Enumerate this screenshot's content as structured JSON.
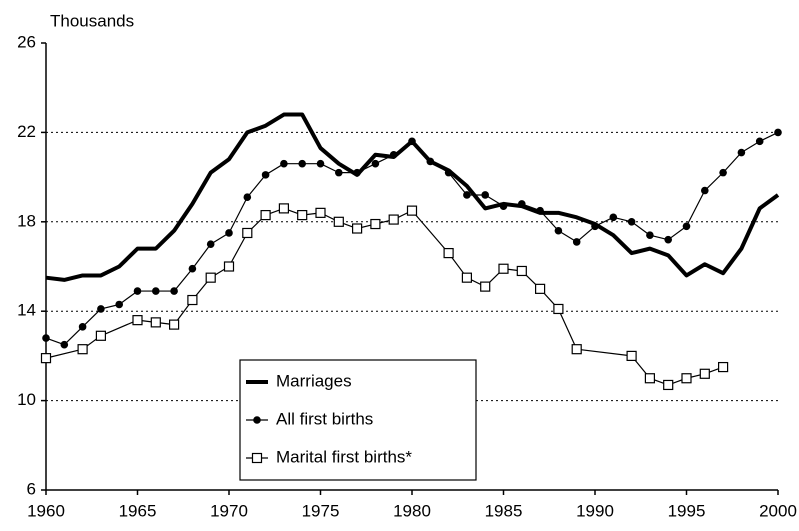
{
  "chart_data": {
    "type": "line",
    "y_axis_label": "Thousands",
    "xlim": [
      1960,
      2000
    ],
    "xticks": [
      1960,
      1965,
      1970,
      1975,
      1980,
      1985,
      1990,
      1995,
      2000
    ],
    "ylim": [
      6,
      26
    ],
    "yticks": [
      6,
      10,
      14,
      18,
      22,
      26
    ],
    "grid": true,
    "legend": "lower center",
    "series": [
      {
        "name": "Marriages",
        "color": "#000000",
        "marker": "none",
        "line_width": 4,
        "x": [
          1960,
          1961,
          1962,
          1963,
          1964,
          1965,
          1966,
          1967,
          1968,
          1969,
          1970,
          1971,
          1972,
          1973,
          1974,
          1975,
          1976,
          1977,
          1978,
          1979,
          1980,
          1981,
          1982,
          1983,
          1984,
          1985,
          1986,
          1987,
          1988,
          1989,
          1990,
          1991,
          1992,
          1993,
          1994,
          1995,
          1996,
          1997,
          1998,
          1999,
          2000
        ],
        "values": [
          15.5,
          15.4,
          15.6,
          15.6,
          16.0,
          16.8,
          16.8,
          17.6,
          18.8,
          20.2,
          20.8,
          22.0,
          22.3,
          22.8,
          22.8,
          21.3,
          20.6,
          20.1,
          21.0,
          20.9,
          21.6,
          20.7,
          20.3,
          19.6,
          18.6,
          18.8,
          18.7,
          18.4,
          18.4,
          18.2,
          17.9,
          17.4,
          16.6,
          16.8,
          16.5,
          15.6,
          16.1,
          15.7,
          16.8,
          18.6,
          19.2
        ]
      },
      {
        "name": "All first births",
        "color": "#000000",
        "marker": "circle",
        "line_width": 1.2,
        "x": [
          1960,
          1961,
          1962,
          1963,
          1964,
          1965,
          1966,
          1967,
          1968,
          1969,
          1970,
          1971,
          1972,
          1973,
          1974,
          1975,
          1976,
          1977,
          1978,
          1979,
          1980,
          1981,
          1982,
          1983,
          1984,
          1985,
          1986,
          1987,
          1988,
          1989,
          1990,
          1991,
          1992,
          1993,
          1994,
          1995,
          1996,
          1997,
          1998,
          1999,
          2000
        ],
        "values": [
          12.8,
          12.5,
          13.3,
          14.1,
          14.3,
          14.9,
          14.9,
          14.9,
          15.9,
          17.0,
          17.5,
          19.1,
          20.1,
          20.6,
          20.6,
          20.6,
          20.2,
          20.2,
          20.6,
          21.0,
          21.6,
          20.7,
          20.2,
          19.2,
          19.2,
          18.7,
          18.8,
          18.5,
          17.6,
          17.1,
          17.8,
          18.2,
          18.0,
          17.4,
          17.2,
          17.8,
          19.4,
          20.2,
          21.1,
          21.6,
          22.0
        ]
      },
      {
        "name": "Marital first births*",
        "color": "#000000",
        "marker": "square",
        "line_width": 1.2,
        "x": [
          1960,
          1962,
          1963,
          1965,
          1966,
          1967,
          1968,
          1969,
          1970,
          1971,
          1972,
          1973,
          1974,
          1975,
          1976,
          1977,
          1978,
          1979,
          1980,
          1982,
          1983,
          1984,
          1985,
          1986,
          1987,
          1988,
          1989,
          1992,
          1993,
          1994,
          1995,
          1996,
          1997
        ],
        "values": [
          11.9,
          12.3,
          12.9,
          13.6,
          13.5,
          13.4,
          14.5,
          15.5,
          16.0,
          17.5,
          18.3,
          18.6,
          18.3,
          18.4,
          18.0,
          17.7,
          17.9,
          18.1,
          18.5,
          16.6,
          15.5,
          15.1,
          15.9,
          15.8,
          15.0,
          14.1,
          12.3,
          12.0,
          11.0,
          10.7,
          11.0,
          11.2,
          11.5
        ]
      }
    ]
  }
}
